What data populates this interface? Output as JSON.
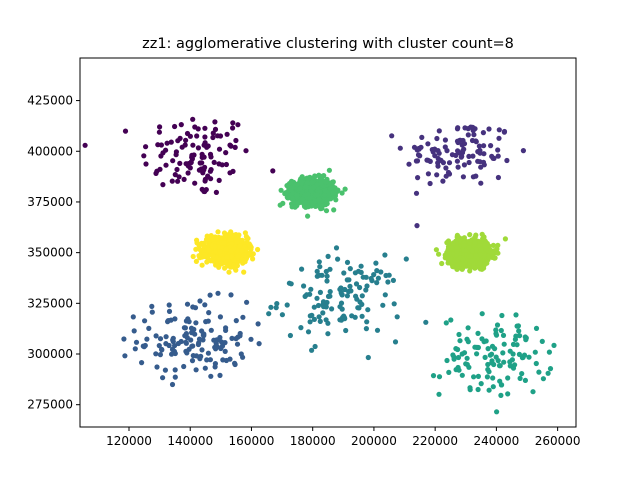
{
  "chart_data": {
    "type": "scatter",
    "title": "zz1: agglomerative clustering with cluster count=8",
    "xlabel": "",
    "ylabel": "",
    "xlim": [
      104000,
      266000
    ],
    "ylim": [
      264000,
      446000
    ],
    "xticks": [
      120000,
      140000,
      160000,
      180000,
      200000,
      220000,
      240000,
      260000
    ],
    "yticks": [
      275000,
      300000,
      325000,
      350000,
      375000,
      400000,
      425000
    ],
    "grid": false,
    "legend": "none",
    "clusters": [
      {
        "label": 0,
        "color": "#440154",
        "center": [
          142000,
          398000
        ],
        "spread": [
          9000,
          10500
        ],
        "n": 110
      },
      {
        "label": 1,
        "color": "#46327e",
        "center": [
          228000,
          399000
        ],
        "spread": [
          9000,
          8500
        ],
        "n": 110
      },
      {
        "label": 2,
        "color": "#365c8d",
        "center": [
          141000,
          307000
        ],
        "spread": [
          9000,
          9500
        ],
        "n": 140
      },
      {
        "label": 3,
        "color": "#277f8e",
        "center": [
          189000,
          327000
        ],
        "spread": [
          10000,
          10000
        ],
        "n": 130
      },
      {
        "label": 4,
        "color": "#1fa187",
        "center": [
          240000,
          299000
        ],
        "spread": [
          9000,
          10000
        ],
        "n": 120
      },
      {
        "label": 5,
        "color": "#4ac16d",
        "center": [
          180000,
          380000
        ],
        "spread": [
          3300,
          3100
        ],
        "n": 900
      },
      {
        "label": 6,
        "color": "#a0da39",
        "center": [
          231000,
          350000
        ],
        "spread": [
          3300,
          3100
        ],
        "n": 900
      },
      {
        "label": 7,
        "color": "#fde725",
        "center": [
          152000,
          351000
        ],
        "spread": [
          3300,
          3100
        ],
        "n": 900
      }
    ]
  }
}
